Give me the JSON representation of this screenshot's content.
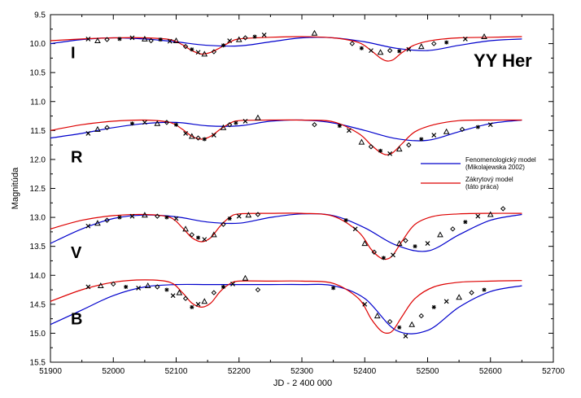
{
  "chart_data": {
    "type": "line",
    "title": "YY Her",
    "xlabel": "JD - 2 400 000",
    "ylabel": "Magnitúda",
    "xlim": [
      51900,
      52700
    ],
    "ylim": [
      15.5,
      9.5
    ],
    "y_inverted": true,
    "xticks": [
      "51900",
      "52000",
      "52100",
      "52200",
      "52300",
      "52400",
      "52500",
      "52600",
      "52700"
    ],
    "yticks": [
      "9.5",
      "10.0",
      "10.5",
      "11.0",
      "11.5",
      "12.0",
      "12.5",
      "13.0",
      "13.5",
      "14.0",
      "14.5",
      "15.0",
      "15.5"
    ],
    "grid": false,
    "legend_position": "right",
    "colors": {
      "phenomenological": "#0000cc",
      "eclipsing": "#dd0000",
      "points": "#000000"
    },
    "series": [
      {
        "name": "Fenomenologický model",
        "color": "#0000cc",
        "data": [
          {
            "band": "I",
            "x": [
              51900,
              51950,
              52000,
              52050,
              52100,
              52150,
              52200,
              52250,
              52300,
              52350,
              52400,
              52450,
              52500,
              52550,
              52600,
              52650
            ],
            "y": [
              10.0,
              9.93,
              9.9,
              9.92,
              9.97,
              10.03,
              10.04,
              9.97,
              9.9,
              9.9,
              9.97,
              10.08,
              10.12,
              10.03,
              9.95,
              9.92
            ]
          },
          {
            "band": "R",
            "x": [
              51900,
              51950,
              52000,
              52050,
              52100,
              52150,
              52200,
              52250,
              52300,
              52350,
              52400,
              52450,
              52500,
              52550,
              52600,
              52650
            ],
            "y": [
              11.63,
              11.55,
              11.45,
              11.38,
              11.36,
              11.42,
              11.42,
              11.34,
              11.32,
              11.37,
              11.5,
              11.64,
              11.67,
              11.52,
              11.38,
              11.32
            ]
          },
          {
            "band": "V",
            "x": [
              51900,
              51950,
              52000,
              52050,
              52100,
              52150,
              52200,
              52250,
              52300,
              52350,
              52400,
              52450,
              52500,
              52550,
              52600,
              52650
            ],
            "y": [
              13.45,
              13.2,
              13.02,
              12.96,
              12.99,
              13.08,
              13.1,
              13.0,
              12.94,
              12.97,
              13.18,
              13.48,
              13.58,
              13.3,
              13.05,
              12.95
            ]
          },
          {
            "band": "B",
            "x": [
              51900,
              51950,
              52000,
              52050,
              52100,
              52150,
              52200,
              52250,
              52300,
              52350,
              52400,
              52450,
              52500,
              52550,
              52600,
              52650
            ],
            "y": [
              14.85,
              14.6,
              14.35,
              14.2,
              14.16,
              14.16,
              14.16,
              14.16,
              14.16,
              14.18,
              14.4,
              14.95,
              14.95,
              14.55,
              14.28,
              14.18
            ]
          }
        ]
      },
      {
        "name": "Zákrytový model",
        "color": "#dd0000",
        "data": [
          {
            "band": "I",
            "x": [
              51900,
              51950,
              52000,
              52050,
              52090,
              52110,
              52125,
              52140,
              52155,
              52170,
              52185,
              52200,
              52250,
              52300,
              52350,
              52390,
              52410,
              52425,
              52435,
              52445,
              52460,
              52480,
              52510,
              52550,
              52600,
              52650
            ],
            "y": [
              9.95,
              9.92,
              9.9,
              9.9,
              9.93,
              10.02,
              10.12,
              10.18,
              10.15,
              10.07,
              9.98,
              9.92,
              9.89,
              9.88,
              9.9,
              9.98,
              10.12,
              10.25,
              10.3,
              10.28,
              10.15,
              10.02,
              9.94,
              9.9,
              9.89,
              9.88
            ]
          },
          {
            "band": "R",
            "x": [
              51900,
              51950,
              52000,
              52050,
              52090,
              52110,
              52125,
              52140,
              52155,
              52170,
              52185,
              52200,
              52250,
              52300,
              52350,
              52390,
              52410,
              52425,
              52435,
              52445,
              52460,
              52480,
              52510,
              52550,
              52600,
              52650
            ],
            "y": [
              11.5,
              11.4,
              11.34,
              11.32,
              11.36,
              11.48,
              11.6,
              11.65,
              11.6,
              11.48,
              11.38,
              11.33,
              11.32,
              11.32,
              11.35,
              11.55,
              11.75,
              11.88,
              11.92,
              11.88,
              11.72,
              11.52,
              11.4,
              11.33,
              11.32,
              11.32
            ]
          },
          {
            "band": "V",
            "x": [
              51900,
              51950,
              52000,
              52050,
              52090,
              52110,
              52125,
              52140,
              52155,
              52170,
              52185,
              52200,
              52250,
              52300,
              52350,
              52390,
              52410,
              52425,
              52435,
              52445,
              52460,
              52480,
              52510,
              52550,
              52600,
              52650
            ],
            "y": [
              13.2,
              13.05,
              12.97,
              12.95,
              13.0,
              13.18,
              13.35,
              13.42,
              13.35,
              13.15,
              13.0,
              12.94,
              12.93,
              12.93,
              12.98,
              13.25,
              13.55,
              13.7,
              13.72,
              13.65,
              13.4,
              13.12,
              12.98,
              12.94,
              12.93,
              12.93
            ]
          },
          {
            "band": "B",
            "x": [
              51900,
              51950,
              52000,
              52050,
              52090,
              52110,
              52125,
              52140,
              52155,
              52170,
              52185,
              52200,
              52250,
              52300,
              52350,
              52390,
              52410,
              52425,
              52435,
              52445,
              52460,
              52480,
              52510,
              52550,
              52600,
              52650
            ],
            "y": [
              14.45,
              14.25,
              14.12,
              14.08,
              14.12,
              14.3,
              14.48,
              14.55,
              14.48,
              14.28,
              14.15,
              14.1,
              14.1,
              14.1,
              14.14,
              14.4,
              14.75,
              14.95,
              15.0,
              14.95,
              14.7,
              14.4,
              14.2,
              14.12,
              14.1,
              14.09
            ]
          }
        ]
      }
    ],
    "observations": [
      {
        "band": "I",
        "points": [
          [
            51960,
            9.92
          ],
          [
            51975,
            9.95
          ],
          [
            51990,
            9.93
          ],
          [
            52010,
            9.92
          ],
          [
            52030,
            9.9
          ],
          [
            52050,
            9.92
          ],
          [
            52060,
            9.95
          ],
          [
            52075,
            9.93
          ],
          [
            52090,
            9.96
          ],
          [
            52100,
            9.95
          ],
          [
            52115,
            10.05
          ],
          [
            52125,
            10.1
          ],
          [
            52135,
            10.15
          ],
          [
            52145,
            10.18
          ],
          [
            52160,
            10.14
          ],
          [
            52175,
            10.03
          ],
          [
            52185,
            9.95
          ],
          [
            52200,
            9.93
          ],
          [
            52210,
            9.9
          ],
          [
            52225,
            9.88
          ],
          [
            52240,
            9.85
          ],
          [
            52320,
            9.82
          ],
          [
            52380,
            10.0
          ],
          [
            52395,
            10.08
          ],
          [
            52410,
            10.12
          ],
          [
            52425,
            10.15
          ],
          [
            52440,
            10.12
          ],
          [
            52455,
            10.13
          ],
          [
            52470,
            10.1
          ],
          [
            52490,
            10.05
          ],
          [
            52510,
            10.0
          ],
          [
            52530,
            9.98
          ],
          [
            52560,
            9.92
          ],
          [
            52590,
            9.88
          ]
        ]
      },
      {
        "band": "R",
        "points": [
          [
            51960,
            11.55
          ],
          [
            51975,
            11.48
          ],
          [
            51990,
            11.45
          ],
          [
            52030,
            11.38
          ],
          [
            52050,
            11.36
          ],
          [
            52070,
            11.38
          ],
          [
            52085,
            11.36
          ],
          [
            52100,
            11.4
          ],
          [
            52115,
            11.55
          ],
          [
            52125,
            11.6
          ],
          [
            52135,
            11.63
          ],
          [
            52145,
            11.65
          ],
          [
            52160,
            11.58
          ],
          [
            52175,
            11.45
          ],
          [
            52185,
            11.4
          ],
          [
            52195,
            11.37
          ],
          [
            52210,
            11.34
          ],
          [
            52230,
            11.28
          ],
          [
            52320,
            11.4
          ],
          [
            52360,
            11.42
          ],
          [
            52375,
            11.5
          ],
          [
            52395,
            11.7
          ],
          [
            52410,
            11.78
          ],
          [
            52425,
            11.85
          ],
          [
            52440,
            11.9
          ],
          [
            52455,
            11.82
          ],
          [
            52470,
            11.75
          ],
          [
            52490,
            11.65
          ],
          [
            52510,
            11.58
          ],
          [
            52530,
            11.52
          ],
          [
            52555,
            11.48
          ],
          [
            52580,
            11.44
          ],
          [
            52600,
            11.4
          ]
        ]
      },
      {
        "band": "V",
        "points": [
          [
            51960,
            13.15
          ],
          [
            51975,
            13.1
          ],
          [
            51990,
            13.05
          ],
          [
            52010,
            13.0
          ],
          [
            52030,
            12.98
          ],
          [
            52050,
            12.96
          ],
          [
            52070,
            12.98
          ],
          [
            52085,
            13.0
          ],
          [
            52100,
            13.02
          ],
          [
            52115,
            13.2
          ],
          [
            52125,
            13.3
          ],
          [
            52135,
            13.35
          ],
          [
            52145,
            13.38
          ],
          [
            52160,
            13.3
          ],
          [
            52175,
            13.12
          ],
          [
            52185,
            13.02
          ],
          [
            52200,
            12.98
          ],
          [
            52215,
            12.96
          ],
          [
            52230,
            12.95
          ],
          [
            52370,
            13.05
          ],
          [
            52385,
            13.2
          ],
          [
            52400,
            13.45
          ],
          [
            52415,
            13.6
          ],
          [
            52430,
            13.7
          ],
          [
            52445,
            13.65
          ],
          [
            52455,
            13.45
          ],
          [
            52465,
            13.4
          ],
          [
            52480,
            13.5
          ],
          [
            52500,
            13.45
          ],
          [
            52520,
            13.3
          ],
          [
            52540,
            13.2
          ],
          [
            52560,
            13.08
          ],
          [
            52580,
            12.98
          ],
          [
            52600,
            12.95
          ],
          [
            52620,
            12.85
          ]
        ]
      },
      {
        "band": "B",
        "points": [
          [
            51960,
            14.2
          ],
          [
            51980,
            14.18
          ],
          [
            52000,
            14.15
          ],
          [
            52020,
            14.2
          ],
          [
            52040,
            14.22
          ],
          [
            52055,
            14.18
          ],
          [
            52070,
            14.2
          ],
          [
            52085,
            14.25
          ],
          [
            52095,
            14.35
          ],
          [
            52105,
            14.3
          ],
          [
            52115,
            14.4
          ],
          [
            52125,
            14.55
          ],
          [
            52135,
            14.5
          ],
          [
            52145,
            14.45
          ],
          [
            52160,
            14.3
          ],
          [
            52175,
            14.2
          ],
          [
            52190,
            14.15
          ],
          [
            52210,
            14.05
          ],
          [
            52230,
            14.25
          ],
          [
            52350,
            14.22
          ],
          [
            52400,
            14.5
          ],
          [
            52420,
            14.7
          ],
          [
            52440,
            14.8
          ],
          [
            52455,
            14.9
          ],
          [
            52465,
            15.05
          ],
          [
            52475,
            14.85
          ],
          [
            52490,
            14.7
          ],
          [
            52510,
            14.55
          ],
          [
            52530,
            14.45
          ],
          [
            52550,
            14.38
          ],
          [
            52570,
            14.3
          ],
          [
            52590,
            14.25
          ]
        ]
      }
    ],
    "band_labels": [
      {
        "text": "I",
        "y": 10.25
      },
      {
        "text": "R",
        "y": 12.05
      },
      {
        "text": "V",
        "y": 13.7
      },
      {
        "text": "B",
        "y": 14.85
      }
    ],
    "legend": [
      {
        "line1": "Fenomenologický model",
        "line2": "(Mikolajewska 2002)",
        "color": "#0000cc"
      },
      {
        "line1": "Zákrytový model",
        "line2": "(táto práca)",
        "color": "#dd0000"
      }
    ]
  }
}
